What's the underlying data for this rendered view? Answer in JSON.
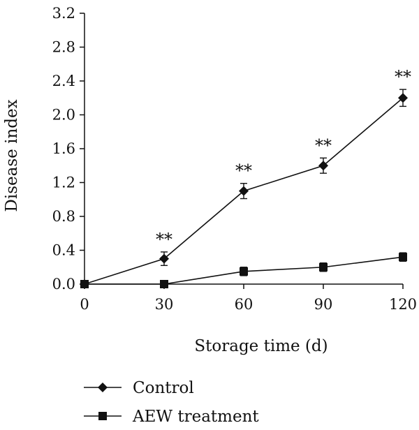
{
  "chart_data": {
    "type": "line",
    "xlabel": "Storage time (d)",
    "ylabel": "Disease index",
    "x": [
      0,
      30,
      60,
      90,
      120
    ],
    "xticks": [
      "0",
      "30",
      "60",
      "90",
      "120"
    ],
    "yticks": [
      "0.0",
      "0.4",
      "0.8",
      "1.2",
      "1.6",
      "2.0",
      "2.4",
      "2.8",
      "3.2"
    ],
    "xlim": [
      0,
      120
    ],
    "ylim": [
      0,
      3.2
    ],
    "grid": false,
    "legend_position": "bottom",
    "series": [
      {
        "name": "Control",
        "marker": "diamond",
        "values": [
          0.0,
          0.3,
          1.1,
          1.4,
          2.2
        ],
        "errors": [
          0.0,
          0.08,
          0.09,
          0.09,
          0.1
        ],
        "significance": [
          "",
          "**",
          "**",
          "**",
          "**"
        ]
      },
      {
        "name": "AEW treatment",
        "marker": "square",
        "values": [
          0.0,
          0.0,
          0.15,
          0.2,
          0.32
        ],
        "errors": [
          0.0,
          0.04,
          0.05,
          0.05,
          0.05
        ]
      }
    ],
    "colors": {
      "line": "#111111",
      "marker": "#111111"
    }
  }
}
